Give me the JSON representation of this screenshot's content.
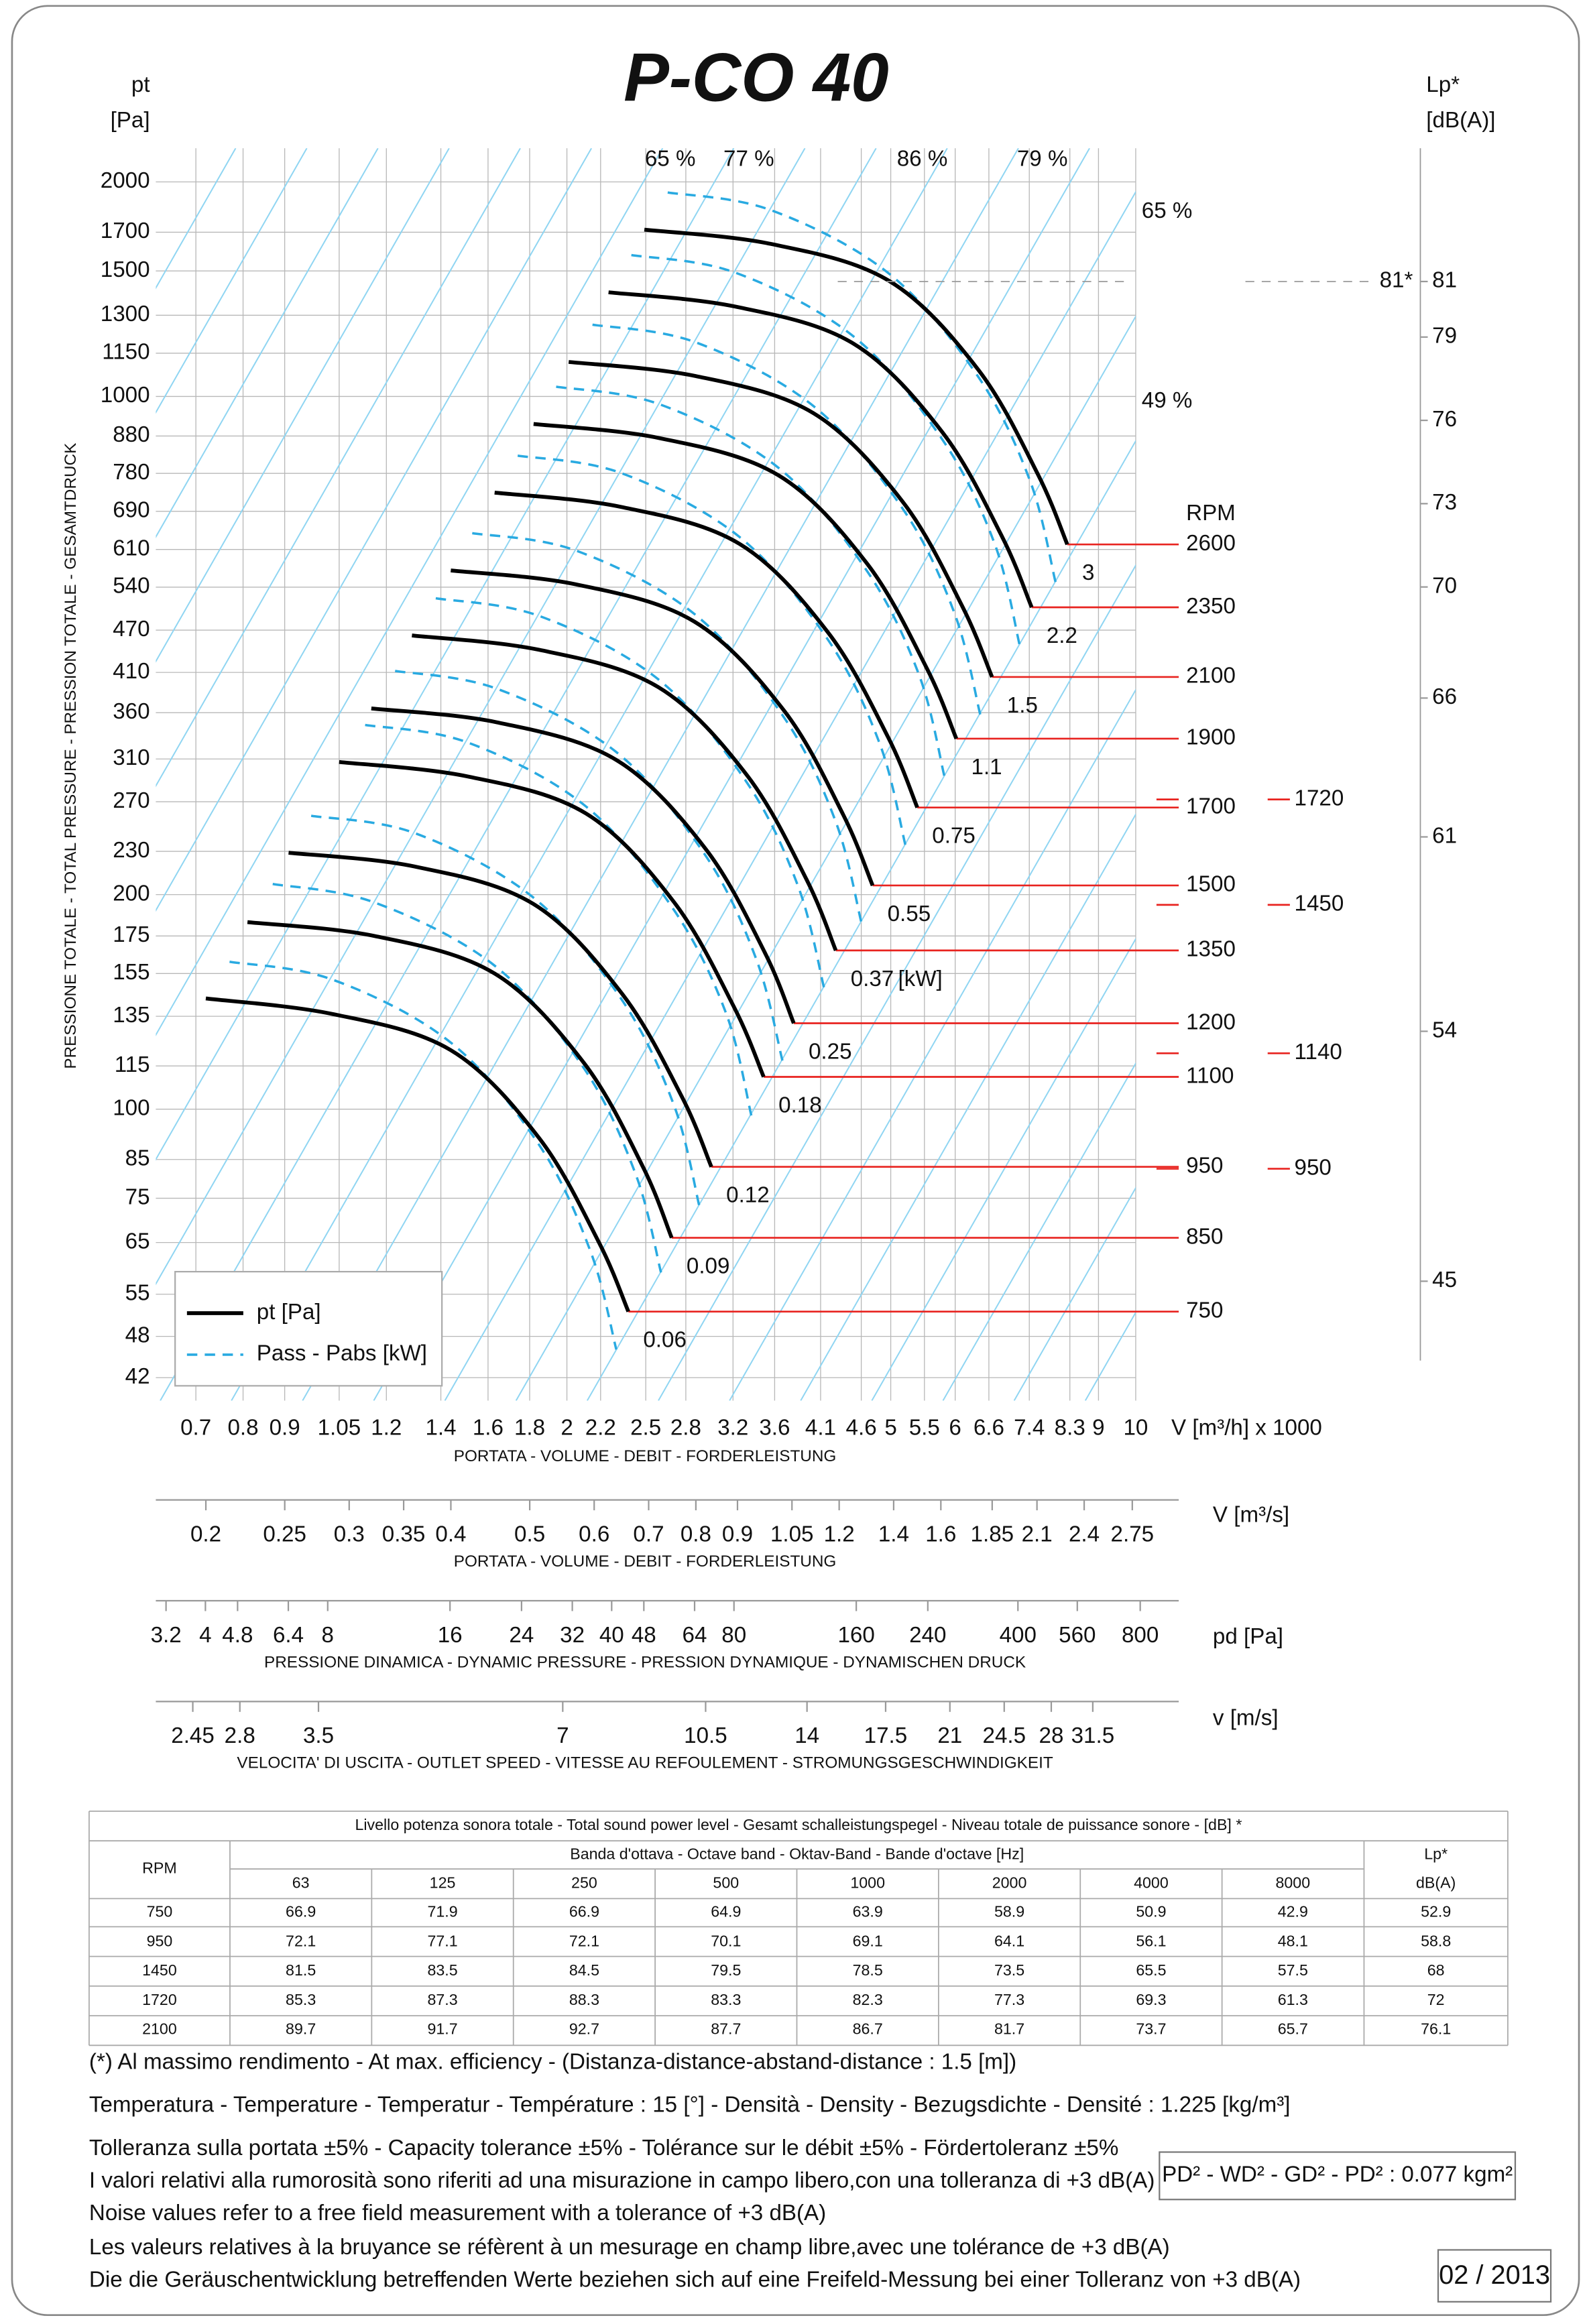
{
  "title": "P-CO 40",
  "chart_data": {
    "type": "line",
    "x_scale": "log",
    "y_scale": "log",
    "ylabel_lines": [
      "pt",
      "[Pa]"
    ],
    "ylabel_side": "PRESSIONE TOTALE - TOTAL PRESSURE - PRESSION TOTALE - GESAMTDRUCK",
    "y2label_lines": [
      "Lp*",
      "[dB(A)]"
    ],
    "xlabel": "V [m³/h]  x 1000",
    "xlabel_side": "PORTATA - VOLUME - DEBIT - FORDERLEISTUNG",
    "xlim": [
      0.625,
      10
    ],
    "xticks": [
      0.7,
      0.8,
      0.9,
      1.05,
      1.2,
      1.4,
      1.6,
      1.8,
      2,
      2.2,
      2.5,
      2.8,
      3.2,
      3.6,
      4.1,
      4.6,
      5,
      5.5,
      6,
      6.6,
      7.4,
      8.3,
      9,
      10
    ],
    "ylim": [
      39,
      2230
    ],
    "yticks": [
      2000,
      1700,
      1500,
      1300,
      1150,
      1000,
      880,
      780,
      690,
      610,
      540,
      470,
      410,
      360,
      310,
      270,
      230,
      200,
      175,
      155,
      135,
      115,
      100,
      85,
      75,
      65,
      55,
      48,
      42
    ],
    "y2lim": [
      40.7,
      85.8
    ],
    "y2ticks": [
      81,
      79,
      76,
      73,
      70,
      66,
      61,
      54,
      45
    ],
    "grid": true,
    "legend": {
      "position": "lower left",
      "entries": [
        {
          "name": "pt [Pa]",
          "color": "#000000",
          "dashed": false
        },
        {
          "name": "Pass - Pabs [kW]",
          "color": "#29aae1",
          "dashed": true
        }
      ]
    },
    "rpm_title": "RPM",
    "rpm_color": "#e8231f",
    "diagonal_color": "#8fd5f2",
    "efficiency_labels": [
      "65 %",
      "77 %",
      "86 %",
      "79 %",
      "65 %",
      "49 %"
    ],
    "lp_marker": {
      "label": "81*",
      "value": 81
    },
    "curves": [
      {
        "rpm": 2600,
        "motor_kw": 3,
        "x": [
          2.49,
          3.56,
          4.98,
          6.41,
          7.58,
          8.24
        ],
        "values": [
          1714,
          1637,
          1452,
          1089,
          778,
          620
        ],
        "power_x": [
          2.66,
          3.56,
          4.98,
          6.41,
          7.42,
          7.97
        ],
        "power_values": [
          1933,
          1826,
          1486,
          1064,
          760,
          549
        ]
      },
      {
        "rpm": 2350,
        "motor_kw": 2.2,
        "x": [
          2.25,
          3.22,
          4.5,
          5.79,
          6.85,
          7.45
        ],
        "values": [
          1400,
          1337,
          1186,
          890,
          636,
          506
        ],
        "power_x": [
          2.4,
          3.22,
          4.5,
          5.79,
          6.71,
          7.2
        ],
        "power_values": [
          1579,
          1492,
          1214,
          869,
          621,
          448
        ]
      },
      {
        "rpm": 2100,
        "motor_kw": 1.5,
        "x": [
          2.01,
          2.88,
          4.02,
          5.18,
          6.12,
          6.66
        ],
        "values": [
          1118,
          1068,
          947,
          710,
          508,
          404
        ],
        "power_x": [
          2.15,
          2.88,
          4.02,
          5.18,
          5.99,
          6.44
        ],
        "power_values": [
          1261,
          1191,
          969,
          694,
          496,
          358
        ]
      },
      {
        "rpm": 1900,
        "motor_kw": 1.1,
        "x": [
          1.82,
          2.6,
          3.64,
          4.68,
          5.54,
          6.02
        ],
        "values": [
          915,
          874,
          775,
          582,
          415,
          331
        ],
        "power_x": [
          1.94,
          2.6,
          3.64,
          4.68,
          5.42,
          5.82
        ],
        "power_values": [
          1032,
          975,
          794,
          568,
          406,
          293
        ]
      },
      {
        "rpm": 1700,
        "motor_kw": 0.75,
        "x": [
          1.63,
          2.33,
          3.26,
          4.19,
          4.96,
          5.39
        ],
        "values": [
          733,
          700,
          621,
          466,
          333,
          265
        ],
        "power_x": [
          1.74,
          2.33,
          3.26,
          4.19,
          4.85,
          5.21
        ],
        "power_values": [
          826,
          781,
          635,
          455,
          325,
          235
        ]
      },
      {
        "rpm": 1500,
        "motor_kw": 0.55,
        "x": [
          1.44,
          2.05,
          2.87,
          3.7,
          4.37,
          4.75
        ],
        "values": [
          570,
          545,
          483,
          362,
          259,
          206
        ],
        "power_x": [
          1.53,
          2.05,
          2.87,
          3.7,
          4.28,
          4.6
        ],
        "power_values": [
          643,
          608,
          495,
          354,
          253,
          183
        ]
      },
      {
        "rpm": 1350,
        "motor_kw": 0.37,
        "motor_kw_unit": "[kW]",
        "x": [
          1.29,
          1.85,
          2.59,
          3.33,
          3.94,
          4.28
        ],
        "values": [
          462,
          441,
          391,
          294,
          210,
          167
        ],
        "power_x": [
          1.38,
          1.85,
          2.59,
          3.33,
          3.85,
          4.14
        ],
        "power_values": [
          521,
          492,
          401,
          287,
          205,
          148
        ]
      },
      {
        "rpm": 1200,
        "motor_kw": 0.25,
        "x": [
          1.15,
          1.64,
          2.3,
          2.96,
          3.5,
          3.8
        ],
        "values": [
          365,
          349,
          309,
          232,
          166,
          132
        ],
        "power_x": [
          1.23,
          1.64,
          2.3,
          2.96,
          3.42,
          3.68
        ],
        "power_values": [
          412,
          389,
          317,
          227,
          162,
          117
        ]
      },
      {
        "rpm": 1100,
        "motor_kw": 0.18,
        "x": [
          1.05,
          1.51,
          2.11,
          2.71,
          3.21,
          3.49
        ],
        "values": [
          307,
          293,
          260,
          195,
          139,
          111
        ],
        "power_x": [
          1.13,
          1.51,
          2.11,
          2.71,
          3.14,
          3.37
        ],
        "power_values": [
          346,
          327,
          266,
          190,
          136,
          98
        ]
      },
      {
        "rpm": 950,
        "motor_kw": 0.12,
        "x": [
          0.91,
          1.3,
          1.82,
          2.34,
          2.77,
          3.01
        ],
        "values": [
          229,
          219,
          194,
          145,
          104,
          83
        ],
        "power_x": [
          0.97,
          1.3,
          1.82,
          2.34,
          2.71,
          2.91
        ],
        "power_values": [
          258,
          244,
          198,
          142,
          101,
          73
        ]
      },
      {
        "rpm": 850,
        "motor_kw": 0.09,
        "x": [
          0.81,
          1.16,
          1.63,
          2.1,
          2.48,
          2.69
        ],
        "values": [
          183,
          175,
          155,
          116,
          83,
          66
        ],
        "power_x": [
          0.87,
          1.16,
          1.63,
          2.1,
          2.43,
          2.61
        ],
        "power_values": [
          207,
          195,
          159,
          114,
          81,
          59
        ]
      },
      {
        "rpm": 750,
        "motor_kw": 0.06,
        "x": [
          0.72,
          1.03,
          1.44,
          1.85,
          2.19,
          2.38
        ],
        "values": [
          143,
          136,
          121,
          91,
          65,
          52
        ],
        "power_x": [
          0.77,
          1.03,
          1.44,
          1.85,
          2.14,
          2.3
        ],
        "power_values": [
          161,
          152,
          124,
          89,
          63,
          46
        ]
      }
    ],
    "rpm_marks": [
      {
        "rpm": 1720,
        "pt": 272
      },
      {
        "rpm": 1450,
        "pt": 193.5
      },
      {
        "rpm": 1140,
        "pt": 119.8
      },
      {
        "rpm": 950,
        "pt": 82.5
      }
    ]
  },
  "secondary_axes": [
    {
      "label": "V  [m³/s]",
      "caption": "PORTATA - VOLUME - DEBIT - FORDERLEISTUNG",
      "scale": "log",
      "xlim": [
        0.1736,
        3.136
      ],
      "xticks": [
        0.2,
        0.25,
        0.3,
        0.35,
        0.4,
        0.5,
        0.6,
        0.7,
        0.8,
        0.9,
        1.05,
        1.2,
        1.4,
        1.6,
        1.85,
        2.1,
        2.4,
        2.75
      ]
    },
    {
      "label": "pd  [Pa]",
      "caption": "PRESSIONE DINAMICA - DYNAMIC PRESSURE - PRESSION DYNAMIQUE - DYNAMISCHEN DRUCK",
      "scale": "log",
      "xlim": [
        3.02,
        995
      ],
      "xticks": [
        3.2,
        4,
        4.8,
        6.4,
        8,
        16,
        24,
        32,
        40,
        48,
        64,
        80,
        160,
        240,
        400,
        560,
        800
      ]
    },
    {
      "label": "v  [m/s]",
      "caption": "VELOCITA' DI USCITA - OUTLET SPEED - VITESSE AU REFOULEMENT - STROMUNGSGESCHWINDIGKEIT",
      "scale": "log",
      "xlim": [
        2.206,
        40.2
      ],
      "xticks": [
        2.45,
        2.8,
        3.5,
        7,
        10.5,
        14,
        17.5,
        21,
        24.5,
        28,
        31.5
      ]
    }
  ],
  "table": {
    "title": "Livello potenza sonora totale - Total sound power level - Gesamt schalleistungspegel - Niveau totale de puissance sonore - [dB]   *",
    "band_title": "Banda d'ottava - Octave band - Oktav-Band - Bande d'octave [Hz]",
    "rpm_header": "RPM",
    "lp_header": [
      "Lp*",
      "dB(A)"
    ],
    "bands": [
      63,
      125,
      250,
      500,
      1000,
      2000,
      4000,
      8000
    ],
    "rows": [
      [
        750,
        66.9,
        71.9,
        66.9,
        64.9,
        63.9,
        58.9,
        50.9,
        42.9,
        52.9
      ],
      [
        950,
        72.1,
        77.1,
        72.1,
        70.1,
        69.1,
        64.1,
        56.1,
        48.1,
        58.8
      ],
      [
        1450,
        81.5,
        83.5,
        84.5,
        79.5,
        78.5,
        73.5,
        65.5,
        57.5,
        68
      ],
      [
        1720,
        85.3,
        87.3,
        88.3,
        83.3,
        82.3,
        77.3,
        69.3,
        61.3,
        72
      ],
      [
        2100,
        89.7,
        91.7,
        92.7,
        87.7,
        86.7,
        81.7,
        73.7,
        65.7,
        76.1
      ]
    ]
  },
  "notes": [
    "(*) Al massimo rendimento - At max. efficiency - (Distanza-distance-abstand-distance : 1.5 [m])",
    "Temperatura - Temperature - Temperatur - Température : 15 [°]  -  Densità - Density - Bezugsdichte - Densité : 1.225 [kg/m³]",
    "Tolleranza sulla portata  ±5% - Capacity tolerance ±5% - Tolérance sur le débit ±5% - Fördertoleranz ±5%",
    "I valori relativi alla rumorosità sono riferiti ad una misurazione in campo libero,con una tolleranza di +3 dB(A)",
    "Noise values refer to a free field measurement with a tolerance of +3 dB(A)",
    "Les valeurs relatives à la bruyance se réfèrent à un mesurage en champ libre,avec une tolérance de +3 dB(A)",
    "Die die Geräuschentwicklung betreffenden Werte beziehen sich auf eine Freifeld-Messung bei einer Tolleranz von +3 dB(A)"
  ],
  "inertia": "PD² -  WD² - GD² -  PD²  :  0.077 kgm²",
  "date": "02 / 2013"
}
